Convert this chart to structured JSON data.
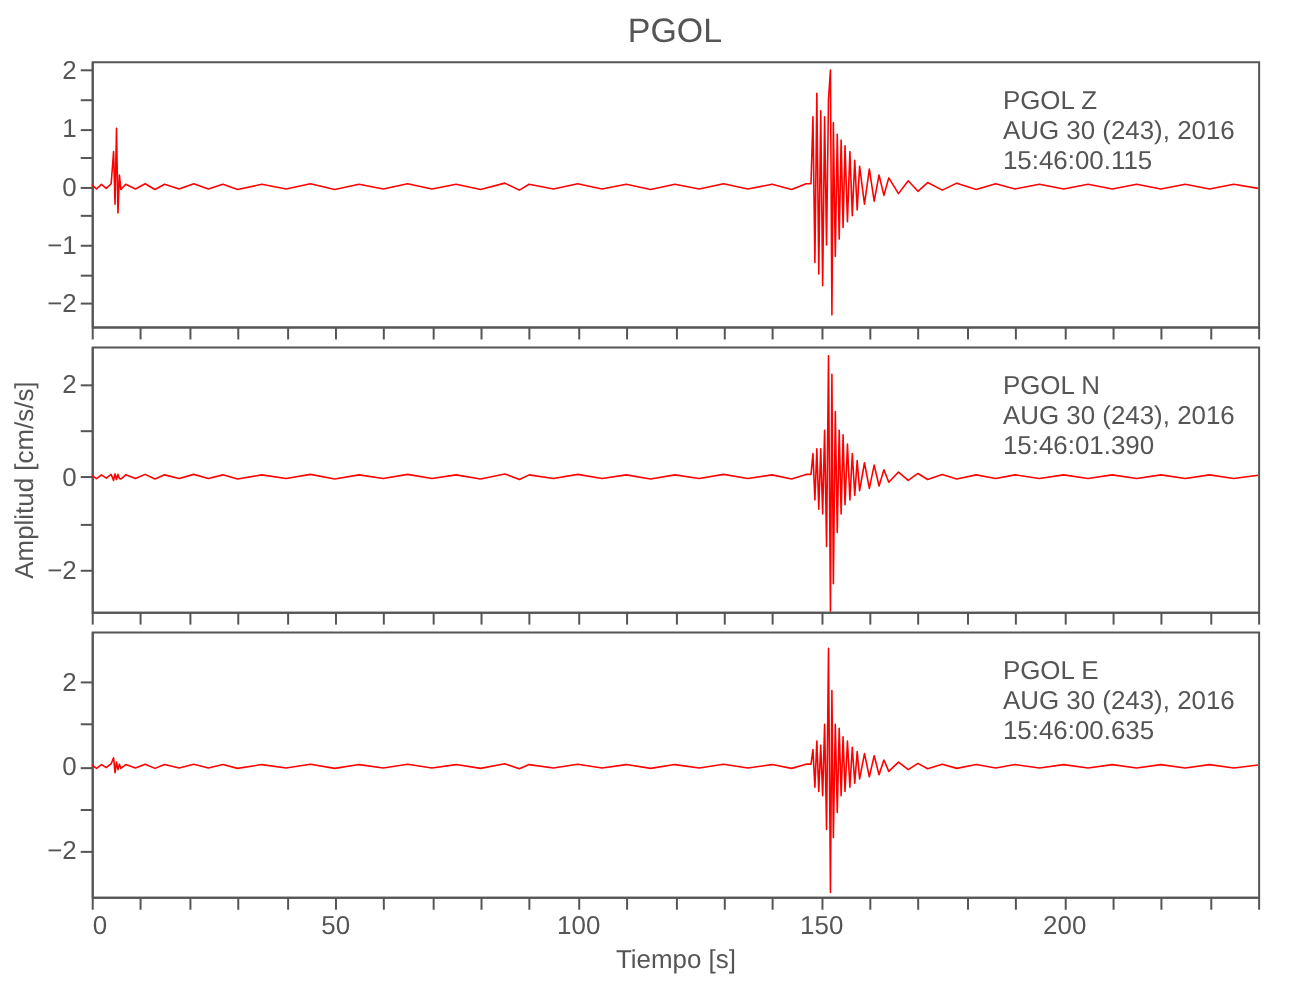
{
  "chart_data": [
    {
      "type": "line",
      "title": "PGOL",
      "tick_labels": "y",
      "grid": false,
      "x": [
        0,
        1,
        2,
        3,
        4,
        4.5,
        4.8,
        5.1,
        5.4,
        5.7,
        6,
        7,
        9,
        11,
        13,
        15,
        18,
        21,
        24,
        27,
        30,
        35,
        40,
        45,
        50,
        55,
        60,
        65,
        70,
        75,
        80,
        85,
        88,
        90,
        95,
        100,
        105,
        110,
        115,
        120,
        125,
        130,
        135,
        140,
        144,
        147,
        148,
        148.4,
        148.8,
        149.2,
        149.6,
        150,
        150.4,
        150.8,
        151.2,
        151.6,
        152,
        152.3,
        152.6,
        153,
        153.4,
        153.8,
        154.2,
        154.6,
        155,
        155.5,
        156,
        156.5,
        157,
        157.5,
        158,
        159,
        160,
        161,
        162,
        163,
        164,
        166,
        168,
        170,
        172,
        175,
        178,
        182,
        186,
        190,
        195,
        200,
        205,
        210,
        215,
        220,
        225,
        230,
        235,
        240
      ],
      "series": [
        {
          "color": "#ff0000",
          "values": [
            0.03,
            -0.04,
            0.04,
            -0.03,
            0.05,
            0.6,
            -0.3,
            1.0,
            -0.45,
            0.2,
            -0.05,
            0.04,
            -0.04,
            0.05,
            -0.05,
            0.04,
            -0.04,
            0.05,
            -0.04,
            0.04,
            -0.05,
            0.04,
            -0.04,
            0.05,
            -0.05,
            0.04,
            -0.04,
            0.05,
            -0.04,
            0.04,
            -0.05,
            0.06,
            -0.06,
            0.04,
            -0.04,
            0.05,
            -0.04,
            0.04,
            -0.05,
            0.04,
            -0.04,
            0.05,
            -0.04,
            0.04,
            -0.05,
            0.05,
            0.05,
            1.2,
            -1.3,
            1.6,
            -1.5,
            1.3,
            -1.7,
            1.2,
            -1.0,
            1.5,
            2.0,
            -2.2,
            1.1,
            -1.2,
            0.9,
            -0.9,
            0.8,
            -0.7,
            0.7,
            -0.6,
            0.6,
            -0.5,
            0.45,
            -0.4,
            0.35,
            -0.3,
            0.3,
            -0.25,
            0.2,
            -0.15,
            0.15,
            -0.12,
            0.1,
            -0.08,
            0.07,
            -0.06,
            0.06,
            -0.05,
            0.05,
            -0.04,
            0.04,
            -0.04,
            0.04,
            -0.04,
            0.04,
            -0.04,
            0.04,
            -0.04,
            0.04,
            -0.03
          ]
        }
      ],
      "xlim": [
        0,
        240
      ],
      "xticks": [
        0,
        {
          "value": 10,
          "label": null
        },
        {
          "value": 20,
          "label": null
        },
        {
          "value": 30,
          "label": null
        },
        {
          "value": 40,
          "label": null
        },
        50,
        {
          "value": 60,
          "label": null
        },
        {
          "value": 70,
          "label": null
        },
        {
          "value": 80,
          "label": null
        },
        {
          "value": 90,
          "label": null
        },
        100,
        {
          "value": 110,
          "label": null
        },
        {
          "value": 120,
          "label": null
        },
        {
          "value": 130,
          "label": null
        },
        {
          "value": 140,
          "label": null
        },
        150,
        {
          "value": 160,
          "label": null
        },
        {
          "value": 170,
          "label": null
        },
        {
          "value": 180,
          "label": null
        },
        {
          "value": 190,
          "label": null
        },
        200,
        {
          "value": 210,
          "label": null
        },
        {
          "value": 220,
          "label": null
        },
        {
          "value": 230,
          "label": null
        },
        {
          "value": 240,
          "label": null
        }
      ],
      "ylim": [
        -2.4,
        2.15
      ],
      "yticks": [
        -2,
        {
          "value": -1.5,
          "label": null
        },
        -1,
        {
          "value": -0.5,
          "label": null
        },
        0,
        {
          "value": 0.5,
          "label": null
        },
        1,
        {
          "value": 1.5,
          "label": null
        },
        2
      ],
      "annotations": [
        "PGOL  Z",
        "AUG 30 (243), 2016",
        "15:46:00.115"
      ]
    },
    {
      "type": "line",
      "ylabel": "Amplitud [cm/s/s]",
      "tick_labels": "y",
      "grid": false,
      "x": [
        0,
        1,
        2,
        3,
        4,
        4.5,
        4.8,
        5.1,
        5.4,
        5.7,
        6,
        7,
        9,
        11,
        13,
        15,
        18,
        21,
        24,
        27,
        30,
        35,
        40,
        45,
        50,
        55,
        60,
        65,
        70,
        75,
        80,
        85,
        88,
        90,
        95,
        100,
        105,
        110,
        115,
        120,
        125,
        130,
        135,
        140,
        144,
        147,
        148,
        148.4,
        148.8,
        149.2,
        149.6,
        150,
        150.4,
        150.8,
        151.2,
        151.6,
        152,
        152.3,
        152.6,
        153,
        153.4,
        153.8,
        154.2,
        154.6,
        155,
        155.5,
        156,
        156.5,
        157,
        157.5,
        158,
        159,
        160,
        161,
        162,
        163,
        164,
        166,
        168,
        170,
        172,
        175,
        178,
        182,
        186,
        190,
        195,
        200,
        205,
        210,
        215,
        220,
        225,
        230,
        235,
        240
      ],
      "series": [
        {
          "color": "#ff0000",
          "values": [
            0.03,
            -0.04,
            0.04,
            -0.03,
            0.05,
            -0.08,
            0.06,
            -0.06,
            0.05,
            -0.04,
            -0.05,
            0.04,
            -0.04,
            0.05,
            -0.05,
            0.04,
            -0.04,
            0.05,
            -0.04,
            0.04,
            -0.05,
            0.04,
            -0.04,
            0.05,
            -0.05,
            0.04,
            -0.04,
            0.05,
            -0.04,
            0.04,
            -0.05,
            0.06,
            -0.06,
            0.04,
            -0.04,
            0.05,
            -0.04,
            0.04,
            -0.05,
            0.04,
            -0.04,
            0.05,
            -0.04,
            0.04,
            -0.05,
            0.05,
            0.05,
            0.5,
            -0.5,
            0.6,
            -0.7,
            0.6,
            -0.8,
            1.0,
            -1.5,
            2.6,
            -2.9,
            2.2,
            -2.3,
            1.4,
            -1.2,
            1.0,
            -0.8,
            0.9,
            -0.6,
            0.7,
            -0.5,
            0.5,
            -0.4,
            0.35,
            -0.3,
            0.3,
            -0.25,
            0.25,
            -0.2,
            0.15,
            -0.12,
            0.1,
            -0.08,
            0.07,
            -0.06,
            0.05,
            -0.05,
            0.04,
            -0.04,
            0.04,
            -0.04,
            0.04,
            -0.04,
            0.04,
            -0.04,
            0.04,
            -0.04,
            0.04,
            -0.04,
            0.03
          ]
        }
      ],
      "xlim": [
        0,
        240
      ],
      "xticks": [
        0,
        {
          "value": 10,
          "label": null
        },
        {
          "value": 20,
          "label": null
        },
        {
          "value": 30,
          "label": null
        },
        {
          "value": 40,
          "label": null
        },
        50,
        {
          "value": 60,
          "label": null
        },
        {
          "value": 70,
          "label": null
        },
        {
          "value": 80,
          "label": null
        },
        {
          "value": 90,
          "label": null
        },
        100,
        {
          "value": 110,
          "label": null
        },
        {
          "value": 120,
          "label": null
        },
        {
          "value": 130,
          "label": null
        },
        {
          "value": 140,
          "label": null
        },
        150,
        {
          "value": 160,
          "label": null
        },
        {
          "value": 170,
          "label": null
        },
        {
          "value": 180,
          "label": null
        },
        {
          "value": 190,
          "label": null
        },
        200,
        {
          "value": 210,
          "label": null
        },
        {
          "value": 220,
          "label": null
        },
        {
          "value": 230,
          "label": null
        },
        {
          "value": 240,
          "label": null
        }
      ],
      "ylim": [
        -2.9,
        2.8
      ],
      "yticks": [
        -2,
        {
          "value": -1,
          "label": null
        },
        0,
        {
          "value": 1,
          "label": null
        },
        2
      ],
      "annotations": [
        "PGOL  N",
        "AUG 30 (243), 2016",
        "15:46:01.390"
      ]
    },
    {
      "type": "line",
      "xlabel": "Tiempo [s]",
      "grid": false,
      "x": [
        0,
        1,
        2,
        3,
        4,
        4.5,
        4.8,
        5.1,
        5.4,
        5.7,
        6,
        7,
        9,
        11,
        13,
        15,
        18,
        21,
        24,
        27,
        30,
        35,
        40,
        45,
        50,
        55,
        60,
        65,
        70,
        75,
        80,
        85,
        88,
        90,
        95,
        100,
        105,
        110,
        115,
        120,
        125,
        130,
        135,
        140,
        144,
        147,
        148,
        148.4,
        148.8,
        149.2,
        149.6,
        150,
        150.4,
        150.8,
        151.2,
        151.6,
        152,
        152.3,
        152.6,
        153,
        153.4,
        153.8,
        154.2,
        154.6,
        155,
        155.5,
        156,
        156.5,
        157,
        157.5,
        158,
        159,
        160,
        161,
        162,
        163,
        164,
        166,
        168,
        170,
        172,
        175,
        178,
        182,
        186,
        190,
        195,
        200,
        205,
        210,
        215,
        220,
        225,
        230,
        235,
        240
      ],
      "series": [
        {
          "color": "#ff0000",
          "values": [
            0.03,
            -0.05,
            0.04,
            -0.03,
            0.06,
            0.2,
            -0.15,
            0.1,
            -0.08,
            0.05,
            -0.05,
            0.04,
            -0.04,
            0.05,
            -0.05,
            0.04,
            -0.04,
            0.05,
            -0.04,
            0.04,
            -0.05,
            0.04,
            -0.04,
            0.05,
            -0.05,
            0.04,
            -0.04,
            0.05,
            -0.04,
            0.04,
            -0.05,
            0.06,
            -0.06,
            0.04,
            -0.04,
            0.05,
            -0.04,
            0.04,
            -0.05,
            0.04,
            -0.04,
            0.05,
            -0.04,
            0.04,
            -0.05,
            0.05,
            0.05,
            0.4,
            -0.5,
            0.6,
            -0.6,
            0.5,
            -0.7,
            1.0,
            -1.5,
            2.8,
            -3.0,
            1.8,
            -1.7,
            1.0,
            -1.1,
            0.9,
            -0.7,
            0.7,
            -0.6,
            0.6,
            -0.5,
            0.45,
            -0.4,
            0.35,
            -0.3,
            0.3,
            -0.25,
            0.25,
            -0.2,
            0.15,
            -0.12,
            0.1,
            -0.08,
            0.07,
            -0.06,
            0.05,
            -0.05,
            0.04,
            -0.04,
            0.04,
            -0.04,
            0.04,
            -0.04,
            0.04,
            -0.04,
            0.04,
            -0.04,
            0.04,
            -0.04,
            0.03
          ]
        }
      ],
      "xlim": [
        0,
        240
      ],
      "xticks": [
        0,
        {
          "value": 10,
          "label": null
        },
        {
          "value": 20,
          "label": null
        },
        {
          "value": 30,
          "label": null
        },
        {
          "value": 40,
          "label": null
        },
        50,
        {
          "value": 60,
          "label": null
        },
        {
          "value": 70,
          "label": null
        },
        {
          "value": 80,
          "label": null
        },
        {
          "value": 90,
          "label": null
        },
        100,
        {
          "value": 110,
          "label": null
        },
        {
          "value": 120,
          "label": null
        },
        {
          "value": 130,
          "label": null
        },
        {
          "value": 140,
          "label": null
        },
        150,
        {
          "value": 160,
          "label": null
        },
        {
          "value": 170,
          "label": null
        },
        {
          "value": 180,
          "label": null
        },
        {
          "value": 190,
          "label": null
        },
        200,
        {
          "value": 210,
          "label": null
        },
        {
          "value": 220,
          "label": null
        },
        {
          "value": 230,
          "label": null
        },
        {
          "value": 240,
          "label": null
        }
      ],
      "ylim": [
        -3.1,
        3.2
      ],
      "yticks": [
        -2,
        {
          "value": -1,
          "label": null
        },
        0,
        {
          "value": 1,
          "label": null
        },
        2
      ],
      "annotations": [
        "PGOL  E",
        "AUG 30 (243), 2016",
        "15:46:00.635"
      ]
    }
  ]
}
